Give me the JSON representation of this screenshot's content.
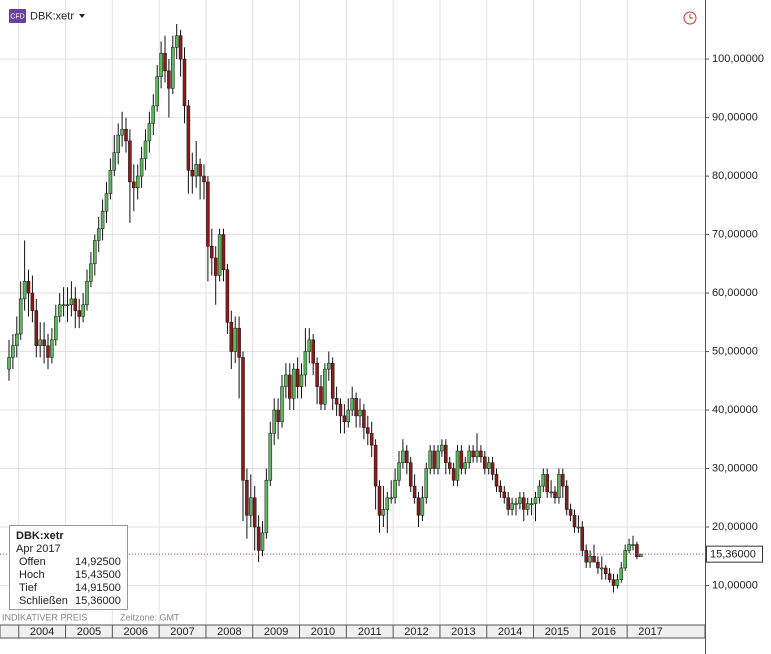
{
  "header": {
    "icon": "CFD",
    "symbol": "DBK:xetr"
  },
  "info_box": {
    "title": "DBK:xetr",
    "date": "Apr 2017",
    "labels": [
      "Offen",
      "Hoch",
      "Tief",
      "Schließen"
    ],
    "value_labels": [
      "14,92500",
      "15,43500",
      "14,91500",
      "15,36000"
    ]
  },
  "footer": {
    "note": "INDIKATIVER PREIS",
    "timezone": "Zeitzone: GMT"
  },
  "chart_data": {
    "type": "candlestick",
    "up_color": "#5cb85c",
    "down_color": "#8b1a1a",
    "ylim": [
      3.25,
      110.1
    ],
    "yticks": [
      {
        "value": 10,
        "label": "10,00000"
      },
      {
        "value": 20,
        "label": "20,00000"
      },
      {
        "value": 30,
        "label": "30,00000"
      },
      {
        "value": 40,
        "label": "40,00000"
      },
      {
        "value": 50,
        "label": "50,00000"
      },
      {
        "value": 60,
        "label": "60,00000"
      },
      {
        "value": 70,
        "label": "70,00000"
      },
      {
        "value": 80,
        "label": "80,00000"
      },
      {
        "value": 90,
        "label": "90,00000"
      },
      {
        "value": 100,
        "label": "100,00000"
      }
    ],
    "grid": true,
    "year_labels": [
      "2004",
      "2005",
      "2006",
      "2007",
      "2008",
      "2009",
      "2010",
      "2011",
      "2012",
      "2013",
      "2014",
      "2015",
      "2016",
      "2017"
    ],
    "last_price": {
      "value": 15.36,
      "label": "15,36000"
    },
    "x": [
      "2003-10",
      "2003-11",
      "2003-12",
      "2004-01",
      "2004-02",
      "2004-03",
      "2004-04",
      "2004-05",
      "2004-06",
      "2004-07",
      "2004-08",
      "2004-09",
      "2004-10",
      "2004-11",
      "2004-12",
      "2005-01",
      "2005-02",
      "2005-03",
      "2005-04",
      "2005-05",
      "2005-06",
      "2005-07",
      "2005-08",
      "2005-09",
      "2005-10",
      "2005-11",
      "2005-12",
      "2006-01",
      "2006-02",
      "2006-03",
      "2006-04",
      "2006-05",
      "2006-06",
      "2006-07",
      "2006-08",
      "2006-09",
      "2006-10",
      "2006-11",
      "2006-12",
      "2007-01",
      "2007-02",
      "2007-03",
      "2007-04",
      "2007-05",
      "2007-06",
      "2007-07",
      "2007-08",
      "2007-09",
      "2007-10",
      "2007-11",
      "2007-12",
      "2008-01",
      "2008-02",
      "2008-03",
      "2008-04",
      "2008-05",
      "2008-06",
      "2008-07",
      "2008-08",
      "2008-09",
      "2008-10",
      "2008-11",
      "2008-12",
      "2009-01",
      "2009-02",
      "2009-03",
      "2009-04",
      "2009-05",
      "2009-06",
      "2009-07",
      "2009-08",
      "2009-09",
      "2009-10",
      "2009-11",
      "2009-12",
      "2010-01",
      "2010-02",
      "2010-03",
      "2010-04",
      "2010-05",
      "2010-06",
      "2010-07",
      "2010-08",
      "2010-09",
      "2010-10",
      "2010-11",
      "2010-12",
      "2011-01",
      "2011-02",
      "2011-03",
      "2011-04",
      "2011-05",
      "2011-06",
      "2011-07",
      "2011-08",
      "2011-09",
      "2011-10",
      "2011-11",
      "2011-12",
      "2012-01",
      "2012-02",
      "2012-03",
      "2012-04",
      "2012-05",
      "2012-06",
      "2012-07",
      "2012-08",
      "2012-09",
      "2012-10",
      "2012-11",
      "2012-12",
      "2013-01",
      "2013-02",
      "2013-03",
      "2013-04",
      "2013-05",
      "2013-06",
      "2013-07",
      "2013-08",
      "2013-09",
      "2013-10",
      "2013-11",
      "2013-12",
      "2014-01",
      "2014-02",
      "2014-03",
      "2014-04",
      "2014-05",
      "2014-06",
      "2014-07",
      "2014-08",
      "2014-09",
      "2014-10",
      "2014-11",
      "2014-12",
      "2015-01",
      "2015-02",
      "2015-03",
      "2015-04",
      "2015-05",
      "2015-06",
      "2015-07",
      "2015-08",
      "2015-09",
      "2015-10",
      "2015-11",
      "2015-12",
      "2016-01",
      "2016-02",
      "2016-03",
      "2016-04",
      "2016-05",
      "2016-06",
      "2016-07",
      "2016-08",
      "2016-09",
      "2016-10",
      "2016-11",
      "2016-12",
      "2017-01",
      "2017-02",
      "2017-03",
      "2017-04"
    ],
    "ohlc": [
      [
        47,
        52,
        45,
        49
      ],
      [
        49,
        53,
        47,
        51
      ],
      [
        51,
        56,
        49,
        53
      ],
      [
        53,
        62,
        52,
        59
      ],
      [
        59,
        69,
        57,
        62
      ],
      [
        62,
        64,
        56,
        60
      ],
      [
        60,
        63,
        55,
        57
      ],
      [
        57,
        59,
        49,
        51
      ],
      [
        51,
        55,
        49,
        52
      ],
      [
        52,
        55,
        48,
        51
      ],
      [
        51,
        53,
        47,
        49
      ],
      [
        49,
        54,
        48,
        52
      ],
      [
        52,
        58,
        51,
        56
      ],
      [
        56,
        60,
        55,
        58
      ],
      [
        58,
        61,
        56,
        58
      ],
      [
        58,
        61,
        55,
        58
      ],
      [
        58,
        62,
        56,
        59
      ],
      [
        59,
        61,
        54,
        57
      ],
      [
        57,
        59,
        54,
        56
      ],
      [
        56,
        60,
        55,
        58
      ],
      [
        58,
        64,
        57,
        62
      ],
      [
        62,
        67,
        61,
        65
      ],
      [
        65,
        70,
        63,
        69
      ],
      [
        69,
        73,
        67,
        71
      ],
      [
        71,
        76,
        69,
        74
      ],
      [
        74,
        79,
        72,
        77
      ],
      [
        77,
        83,
        76,
        81
      ],
      [
        81,
        87,
        80,
        84
      ],
      [
        84,
        89,
        82,
        87
      ],
      [
        87,
        91,
        85,
        88
      ],
      [
        88,
        90,
        84,
        86
      ],
      [
        86,
        88,
        72,
        79
      ],
      [
        79,
        82,
        74,
        78
      ],
      [
        78,
        82,
        76,
        80
      ],
      [
        80,
        85,
        78,
        83
      ],
      [
        83,
        88,
        81,
        86
      ],
      [
        86,
        91,
        84,
        89
      ],
      [
        89,
        94,
        87,
        92
      ],
      [
        92,
        99,
        91,
        97
      ],
      [
        97,
        103,
        95,
        101
      ],
      [
        101,
        104,
        96,
        98
      ],
      [
        98,
        100,
        90,
        95
      ],
      [
        95,
        104,
        94,
        102
      ],
      [
        102,
        106,
        100,
        104
      ],
      [
        104,
        105,
        97,
        100
      ],
      [
        100,
        102,
        89,
        92
      ],
      [
        92,
        93,
        77,
        81
      ],
      [
        81,
        84,
        77,
        80
      ],
      [
        80,
        86,
        78,
        82
      ],
      [
        82,
        83,
        76,
        80
      ],
      [
        80,
        82,
        76,
        79
      ],
      [
        79,
        80,
        62,
        68
      ],
      [
        68,
        71,
        63,
        66
      ],
      [
        66,
        68,
        58,
        63
      ],
      [
        63,
        71,
        62,
        70
      ],
      [
        70,
        71,
        62,
        64
      ],
      [
        64,
        65,
        53,
        55
      ],
      [
        55,
        57,
        47,
        50
      ],
      [
        50,
        56,
        48,
        54
      ],
      [
        54,
        56,
        42,
        49
      ],
      [
        49,
        50,
        21,
        28
      ],
      [
        28,
        30,
        18,
        22
      ],
      [
        22,
        29,
        20,
        25
      ],
      [
        25,
        27,
        16,
        20
      ],
      [
        20,
        22,
        14,
        16
      ],
      [
        16,
        21,
        15,
        19
      ],
      [
        19,
        30,
        18,
        28
      ],
      [
        28,
        38,
        27,
        36
      ],
      [
        36,
        42,
        34,
        40
      ],
      [
        40,
        42,
        35,
        38
      ],
      [
        38,
        46,
        37,
        44
      ],
      [
        44,
        48,
        42,
        46
      ],
      [
        46,
        48,
        40,
        42
      ],
      [
        42,
        48,
        40,
        47
      ],
      [
        47,
        49,
        42,
        44
      ],
      [
        44,
        48,
        42,
        46
      ],
      [
        46,
        54,
        44,
        50
      ],
      [
        50,
        54,
        48,
        52
      ],
      [
        52,
        53,
        46,
        48
      ],
      [
        48,
        49,
        41,
        44
      ],
      [
        44,
        46,
        40,
        41
      ],
      [
        41,
        48,
        40,
        47
      ],
      [
        47,
        50,
        45,
        48
      ],
      [
        48,
        49,
        40,
        42
      ],
      [
        42,
        44,
        39,
        41
      ],
      [
        41,
        42,
        36,
        39
      ],
      [
        39,
        41,
        36,
        38
      ],
      [
        38,
        42,
        37,
        40
      ],
      [
        40,
        44,
        39,
        42
      ],
      [
        42,
        43,
        37,
        39
      ],
      [
        39,
        42,
        37,
        40
      ],
      [
        40,
        41,
        35,
        37
      ],
      [
        37,
        39,
        34,
        36
      ],
      [
        36,
        38,
        32,
        34
      ],
      [
        34,
        35,
        23,
        27
      ],
      [
        27,
        28,
        19,
        22
      ],
      [
        22,
        27,
        20,
        23
      ],
      [
        23,
        26,
        19,
        25
      ],
      [
        25,
        28,
        24,
        25
      ],
      [
        25,
        30,
        24,
        28
      ],
      [
        28,
        33,
        27,
        31
      ],
      [
        31,
        35,
        30,
        33
      ],
      [
        33,
        34,
        29,
        31
      ],
      [
        31,
        32,
        26,
        27
      ],
      [
        27,
        29,
        24,
        25
      ],
      [
        25,
        26,
        20,
        22
      ],
      [
        22,
        27,
        21,
        25
      ],
      [
        25,
        31,
        24,
        30
      ],
      [
        30,
        34,
        29,
        33
      ],
      [
        33,
        34,
        29,
        30
      ],
      [
        30,
        34,
        29,
        33
      ],
      [
        33,
        35,
        32,
        34
      ],
      [
        34,
        35,
        29,
        31
      ],
      [
        31,
        32,
        29,
        30
      ],
      [
        30,
        31,
        27,
        28
      ],
      [
        28,
        34,
        27,
        33
      ],
      [
        33,
        34,
        29,
        30
      ],
      [
        30,
        32,
        29,
        31
      ],
      [
        31,
        34,
        30,
        33
      ],
      [
        33,
        34,
        31,
        32
      ],
      [
        32,
        36,
        31,
        33
      ],
      [
        33,
        34,
        31,
        32
      ],
      [
        32,
        33,
        29,
        30
      ],
      [
        30,
        32,
        29,
        31
      ],
      [
        31,
        32,
        28,
        29
      ],
      [
        29,
        30,
        26,
        27
      ],
      [
        27,
        28,
        25,
        26
      ],
      [
        26,
        27,
        24,
        25
      ],
      [
        25,
        26,
        22,
        23
      ],
      [
        23,
        25,
        22,
        24
      ],
      [
        24,
        25,
        22,
        24
      ],
      [
        24,
        26,
        23,
        25
      ],
      [
        25,
        26,
        21,
        23
      ],
      [
        23,
        25,
        22,
        24
      ],
      [
        24,
        25,
        22,
        24
      ],
      [
        24,
        26,
        21,
        25
      ],
      [
        25,
        28,
        24,
        27
      ],
      [
        27,
        30,
        26,
        29
      ],
      [
        29,
        30,
        25,
        26
      ],
      [
        26,
        28,
        25,
        26
      ],
      [
        26,
        27,
        24,
        25
      ],
      [
        25,
        30,
        24,
        29
      ],
      [
        29,
        30,
        25,
        27
      ],
      [
        27,
        28,
        22,
        23
      ],
      [
        23,
        24,
        21,
        22
      ],
      [
        22,
        23,
        19,
        20
      ],
      [
        20,
        22,
        19,
        20
      ],
      [
        20,
        21,
        15,
        16
      ],
      [
        16,
        17,
        13,
        14
      ],
      [
        14,
        16,
        13,
        15
      ],
      [
        15,
        17,
        14,
        14
      ],
      [
        14,
        15,
        12,
        13
      ],
      [
        13,
        15,
        11,
        13
      ],
      [
        13,
        13.5,
        11,
        12
      ],
      [
        12,
        13,
        10.5,
        11
      ],
      [
        11,
        12,
        8.8,
        10
      ],
      [
        10,
        12,
        9.5,
        11
      ],
      [
        11,
        14,
        10.5,
        13
      ],
      [
        13,
        17,
        12.5,
        16
      ],
      [
        16,
        18,
        15.5,
        17
      ],
      [
        17,
        18.5,
        16,
        17
      ],
      [
        17,
        17.5,
        14.5,
        14.92
      ],
      [
        14.925,
        15.435,
        14.915,
        15.36
      ]
    ]
  }
}
